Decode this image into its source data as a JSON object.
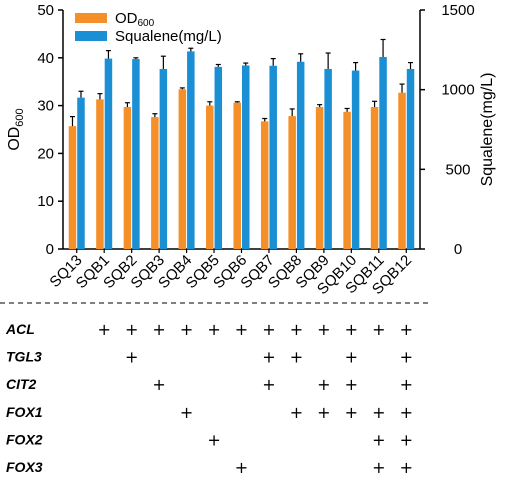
{
  "chart_data": {
    "type": "bar",
    "categories": [
      "SQ13",
      "SQB1",
      "SQB2",
      "SQB3",
      "SQB4",
      "SQB5",
      "SQB6",
      "SQB7",
      "SQB8",
      "SQB9",
      "SQB10",
      "SQB11",
      "SQB12"
    ],
    "series": [
      {
        "name": "OD",
        "name_subscript": "600",
        "axis": "left",
        "color": "#F58F2A",
        "values": [
          25.7,
          31.3,
          29.7,
          27.6,
          33.4,
          30.0,
          30.6,
          26.7,
          27.8,
          29.7,
          28.7,
          29.7,
          32.7
        ],
        "errors": [
          2.0,
          1.2,
          0.9,
          0.7,
          0.3,
          0.8,
          0.2,
          0.6,
          1.5,
          0.5,
          0.7,
          1.2,
          1.8
        ]
      },
      {
        "name": "Squalene(mg/L)",
        "axis": "right",
        "color": "#1A8FD4",
        "values": [
          950,
          1195,
          1192,
          1130,
          1240,
          1143,
          1152,
          1150,
          1175,
          1130,
          1120,
          1205,
          1130
        ],
        "errors": [
          40,
          50,
          8,
          80,
          20,
          15,
          15,
          45,
          50,
          100,
          50,
          110,
          40
        ]
      }
    ],
    "ylabel_left": "OD",
    "ylabel_left_sub": "600",
    "ylabel_right": "Squalene(mg/L)",
    "ylim_left": [
      0,
      50
    ],
    "yticks_left": [
      "0",
      "10",
      "20",
      "30",
      "40",
      "50"
    ],
    "ylim_right": [
      0,
      1500
    ],
    "yticks_right": [
      "0",
      "500",
      "1000",
      "1500"
    ],
    "legend_position": "top-left",
    "grid": false
  },
  "gene_table": {
    "rows": [
      {
        "label": "ACL",
        "marks": [
          false,
          true,
          true,
          true,
          true,
          true,
          true,
          true,
          true,
          true,
          true,
          true,
          true
        ]
      },
      {
        "label": "TGL3",
        "marks": [
          false,
          false,
          true,
          false,
          false,
          false,
          false,
          true,
          true,
          false,
          true,
          false,
          true
        ]
      },
      {
        "label": "CIT2",
        "marks": [
          false,
          false,
          false,
          true,
          false,
          false,
          false,
          true,
          false,
          true,
          true,
          false,
          true
        ]
      },
      {
        "label": "FOX1",
        "marks": [
          false,
          false,
          false,
          false,
          true,
          false,
          false,
          false,
          true,
          true,
          true,
          true,
          true
        ]
      },
      {
        "label": "FOX2",
        "marks": [
          false,
          false,
          false,
          false,
          false,
          true,
          false,
          false,
          false,
          false,
          false,
          true,
          true
        ]
      },
      {
        "label": "FOX3",
        "marks": [
          false,
          false,
          false,
          false,
          false,
          false,
          true,
          false,
          false,
          false,
          false,
          true,
          true
        ]
      }
    ],
    "mark_symbol": "+"
  }
}
